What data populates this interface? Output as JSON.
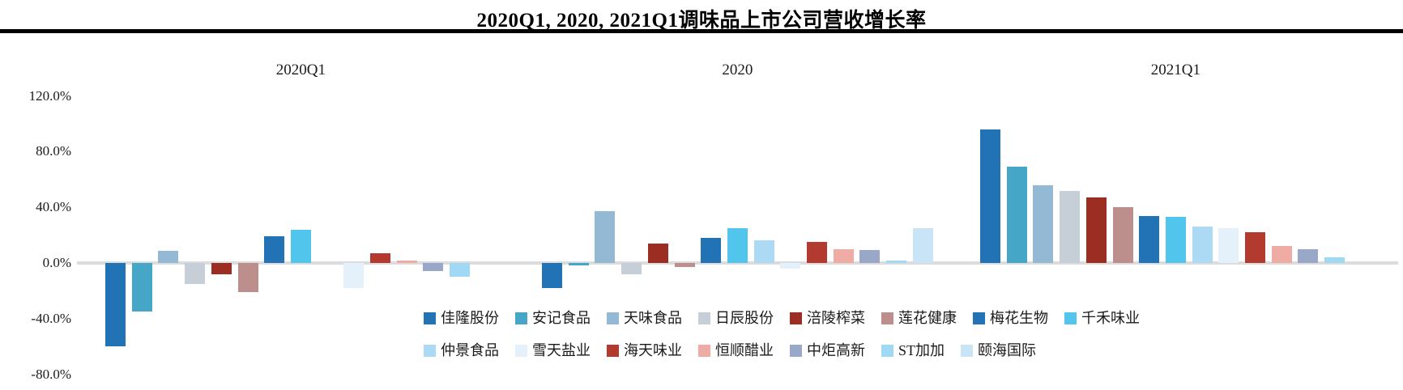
{
  "title": "2020Q1, 2020, 2021Q1调味品上市公司营收增长率",
  "chart_data": {
    "type": "bar",
    "title": "2020Q1, 2020, 2021Q1调味品上市公司营收增长率",
    "value_unit": "percent",
    "ylim": [
      -80,
      120
    ],
    "grid": "zero-line-only",
    "legend_position": "bottom",
    "zero_line_color": "#DCDCDC",
    "y_ticks": [
      {
        "label": "120.0%",
        "value": 120
      },
      {
        "label": "80.0%",
        "value": 80
      },
      {
        "label": "40.0%",
        "value": 40
      },
      {
        "label": "0.0%",
        "value": 0
      },
      {
        "label": "-40.0%",
        "value": -40
      },
      {
        "label": "-80.0%",
        "value": -80
      }
    ],
    "companies": [
      "佳隆股份",
      "安记食品",
      "天味食品",
      "日辰股份",
      "涪陵榨菜",
      "莲花健康",
      "梅花生物",
      "千禾味业",
      "仲景食品",
      "雪天盐业",
      "海天味业",
      "恒顺醋业",
      "中炬高新",
      "ST加加",
      "颐海国际"
    ],
    "colors": [
      "#2272B6",
      "#45A6C8",
      "#93B9D4",
      "#C6CFD8",
      "#9C2D23",
      "#BC8F8D",
      "#2272B6",
      "#52C5EC",
      "#ACDAF4",
      "#E4F1FA",
      "#B23A2E",
      "#EFACA5",
      "#99A8C9",
      "#A0D9F3",
      "#C9E4F7"
    ],
    "series": [
      {
        "name": "2020Q1",
        "values": [
          -60,
          -35,
          9,
          -15,
          -8,
          -21,
          19,
          24,
          null,
          -18,
          7,
          2,
          -6,
          -10,
          null
        ]
      },
      {
        "name": "2020",
        "values": [
          -18,
          -2,
          37,
          -8,
          14,
          -3,
          18,
          25,
          16,
          -4,
          15,
          10,
          9.5,
          2,
          25
        ]
      },
      {
        "name": "2021Q1",
        "values": [
          96,
          69,
          56,
          52,
          47,
          40,
          34,
          33,
          26,
          25,
          22,
          12,
          10,
          4,
          null
        ]
      }
    ]
  }
}
